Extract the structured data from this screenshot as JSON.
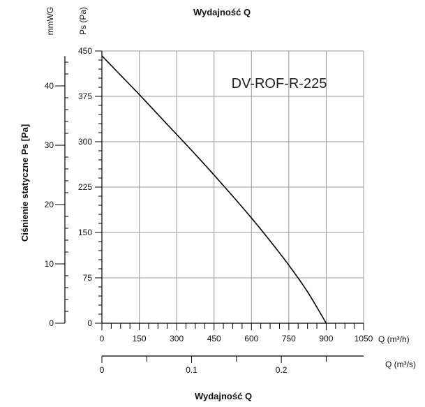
{
  "chart_data": {
    "type": "line",
    "title": "Wydajność Q",
    "bottom_title": "Wydajność Q",
    "model_label": "DV-ROF-R-225",
    "ylabel": "Ciśnienie statyczne Ps [Pa]",
    "y_unit_pa": "Ps (Pa)",
    "y_unit_mmwg": "mmWG",
    "x_unit_m3h": "Q (m³/h)",
    "x_unit_m3s": "Q (m³/s)",
    "xlim": [
      0,
      1050
    ],
    "ylim": [
      0,
      450
    ],
    "xticks": [
      0,
      150,
      300,
      450,
      600,
      750,
      900,
      1050
    ],
    "yticks_pa": [
      0,
      75,
      150,
      225,
      300,
      375,
      450
    ],
    "yticks_mmwg": [
      0,
      10,
      20,
      30,
      40
    ],
    "xticks_m3s": [
      0,
      0.1,
      0.2
    ],
    "grid": true,
    "series": [
      {
        "x": [
          0,
          75,
          150,
          225,
          300,
          375,
          450,
          525,
          600,
          675,
          750,
          825,
          900
        ],
        "y": [
          442,
          410,
          378,
          345,
          312,
          279,
          245,
          210,
          174,
          136,
          96,
          52,
          0
        ]
      }
    ]
  }
}
